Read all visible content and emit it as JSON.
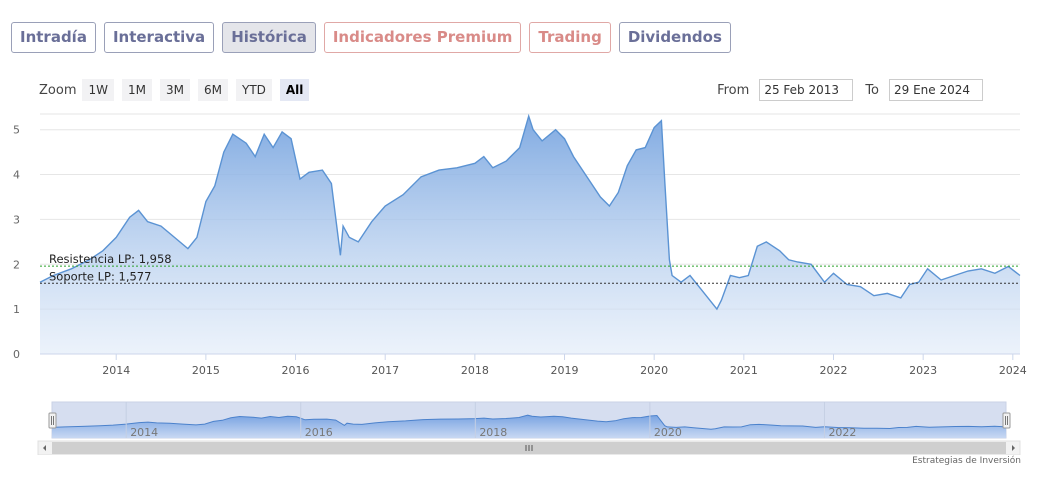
{
  "tabs": [
    {
      "label": "Intradía",
      "state": "normal"
    },
    {
      "label": "Interactiva",
      "state": "normal"
    },
    {
      "label": "Histórica",
      "state": "active"
    },
    {
      "label": "Indicadores Premium",
      "state": "premium"
    },
    {
      "label": "Trading",
      "state": "premium"
    },
    {
      "label": "Dividendos",
      "state": "normal"
    }
  ],
  "zoom": {
    "label": "Zoom",
    "buttons": [
      "1W",
      "1M",
      "3M",
      "6M",
      "YTD",
      "All"
    ],
    "selected": "All"
  },
  "range": {
    "from_label": "From",
    "from_value": "25 Feb 2013",
    "to_label": "To",
    "to_value": "29 Ene 2024"
  },
  "credit": "Estrategias de Inversión",
  "chart_data": {
    "type": "area",
    "title": "",
    "xlabel": "",
    "ylabel": "",
    "ylim": [
      0,
      5
    ],
    "y_ticks": [
      0,
      1,
      2,
      3,
      4,
      5
    ],
    "x_tick_labels": [
      "2014",
      "2015",
      "2016",
      "2017",
      "2018",
      "2019",
      "2020",
      "2021",
      "2022",
      "2023",
      "2024"
    ],
    "xlim": [
      2013.15,
      2024.08
    ],
    "grid": true,
    "series": [
      {
        "name": "",
        "x": [
          2013.15,
          2013.3,
          2013.5,
          2013.7,
          2013.85,
          2014.0,
          2014.15,
          2014.25,
          2014.35,
          2014.5,
          2014.65,
          2014.8,
          2014.9,
          2015.0,
          2015.1,
          2015.2,
          2015.3,
          2015.45,
          2015.55,
          2015.65,
          2015.75,
          2015.85,
          2015.95,
          2016.05,
          2016.15,
          2016.3,
          2016.4,
          2016.5,
          2016.53,
          2016.6,
          2016.7,
          2016.85,
          2017.0,
          2017.2,
          2017.4,
          2017.6,
          2017.8,
          2018.0,
          2018.1,
          2018.2,
          2018.35,
          2018.5,
          2018.6,
          2018.65,
          2018.75,
          2018.9,
          2019.0,
          2019.1,
          2019.25,
          2019.4,
          2019.5,
          2019.6,
          2019.7,
          2019.8,
          2019.9,
          2020.0,
          2020.08,
          2020.12,
          2020.17,
          2020.2,
          2020.3,
          2020.4,
          2020.5,
          2020.6,
          2020.7,
          2020.75,
          2020.85,
          2020.95,
          2021.05,
          2021.15,
          2021.25,
          2021.4,
          2021.5,
          2021.6,
          2021.75,
          2021.9,
          2022.0,
          2022.15,
          2022.3,
          2022.45,
          2022.6,
          2022.75,
          2022.85,
          2022.95,
          2023.05,
          2023.2,
          2023.35,
          2023.5,
          2023.65,
          2023.8,
          2023.95,
          2024.08
        ],
        "y": [
          1.6,
          1.75,
          1.9,
          2.1,
          2.3,
          2.6,
          3.05,
          3.2,
          2.95,
          2.85,
          2.6,
          2.35,
          2.6,
          3.4,
          3.75,
          4.5,
          4.9,
          4.7,
          4.4,
          4.9,
          4.6,
          4.95,
          4.8,
          3.9,
          4.05,
          4.1,
          3.8,
          2.2,
          2.85,
          2.6,
          2.5,
          2.95,
          3.3,
          3.55,
          3.95,
          4.1,
          4.15,
          4.25,
          4.4,
          4.15,
          4.3,
          4.6,
          5.3,
          5.0,
          4.75,
          5.0,
          4.8,
          4.4,
          3.95,
          3.5,
          3.3,
          3.6,
          4.2,
          4.55,
          4.6,
          5.05,
          5.2,
          3.8,
          2.1,
          1.75,
          1.6,
          1.75,
          1.5,
          1.25,
          1.0,
          1.2,
          1.75,
          1.7,
          1.75,
          2.4,
          2.5,
          2.3,
          2.1,
          2.05,
          2.0,
          1.6,
          1.8,
          1.55,
          1.5,
          1.3,
          1.35,
          1.25,
          1.55,
          1.6,
          1.9,
          1.65,
          1.75,
          1.85,
          1.9,
          1.8,
          1.95,
          1.75
        ]
      }
    ],
    "lines": [
      {
        "label": "Resistencia LP: 1,958",
        "value": 1.958,
        "color": "#2aa02a"
      },
      {
        "label": "Soporte LP: 1,577",
        "value": 1.577,
        "color": "#333333"
      }
    ],
    "navigator": {
      "x_tick_labels": [
        "2014",
        "2016",
        "2018",
        "2020",
        "2022"
      ]
    }
  }
}
